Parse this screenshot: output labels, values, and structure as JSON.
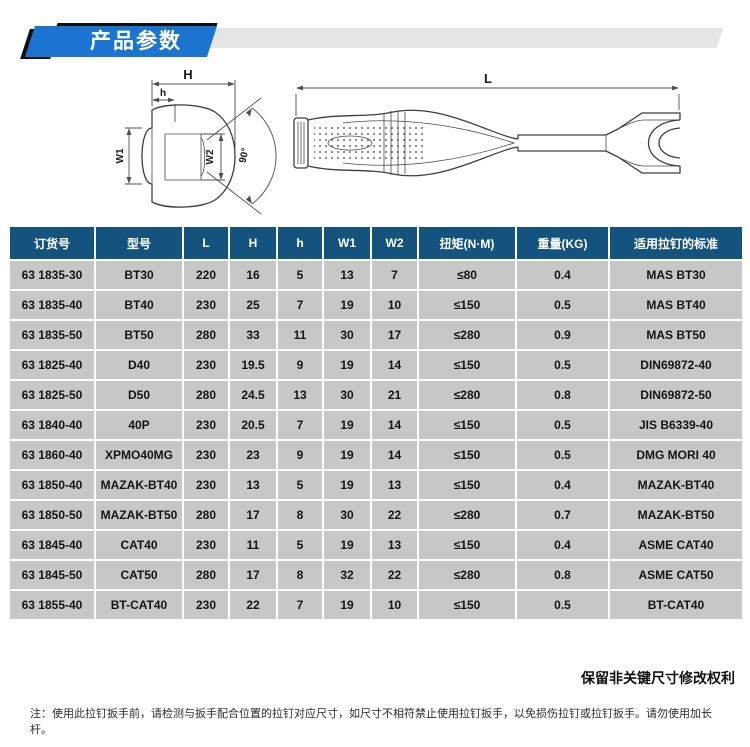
{
  "header": {
    "title": "产品参数"
  },
  "colors": {
    "banner_blue": "#1b74cf",
    "table_header_blue": "#15537f",
    "row_gray": "#c7c7c7",
    "bar_gray": "#e6e5e5"
  },
  "diagram": {
    "head_view": {
      "H": "H",
      "h": "h",
      "W1": "W1",
      "W2": "W2",
      "angle": "90°"
    },
    "side_view": {
      "L": "L"
    }
  },
  "table": {
    "columns": [
      "订货号",
      "型号",
      "L",
      "H",
      "h",
      "W1",
      "W2",
      "扭矩(N·M)",
      "重量(KG)",
      "适用拉钉的标准"
    ],
    "rows": [
      [
        "63 1835-30",
        "BT30",
        "220",
        "16",
        "5",
        "13",
        "7",
        "≤80",
        "0.4",
        "MAS BT30"
      ],
      [
        "63 1835-40",
        "BT40",
        "230",
        "25",
        "7",
        "19",
        "10",
        "≤150",
        "0.5",
        "MAS BT40"
      ],
      [
        "63 1835-50",
        "BT50",
        "280",
        "33",
        "11",
        "30",
        "17",
        "≤280",
        "0.9",
        "MAS BT50"
      ],
      [
        "63 1825-40",
        "D40",
        "230",
        "19.5",
        "9",
        "19",
        "14",
        "≤150",
        "0.5",
        "DIN69872-40"
      ],
      [
        "63 1825-50",
        "D50",
        "280",
        "24.5",
        "13",
        "30",
        "21",
        "≤280",
        "0.8",
        "DIN69872-50"
      ],
      [
        "63 1840-40",
        "40P",
        "230",
        "20.5",
        "7",
        "19",
        "14",
        "≤150",
        "0.5",
        "JIS B6339-40"
      ],
      [
        "63 1860-40",
        "XPMO40MG",
        "230",
        "23",
        "9",
        "19",
        "14",
        "≤150",
        "0.5",
        "DMG MORI 40"
      ],
      [
        "63 1850-40",
        "MAZAK-BT40",
        "230",
        "13",
        "5",
        "19",
        "13",
        "≤150",
        "0.4",
        "MAZAK-BT40"
      ],
      [
        "63 1850-50",
        "MAZAK-BT50",
        "280",
        "17",
        "8",
        "30",
        "22",
        "≤280",
        "0.7",
        "MAZAK-BT50"
      ],
      [
        "63 1845-40",
        "CAT40",
        "230",
        "11",
        "5",
        "19",
        "13",
        "≤150",
        "0.4",
        "ASME CAT40"
      ],
      [
        "63 1845-50",
        "CAT50",
        "280",
        "17",
        "8",
        "32",
        "22",
        "≤280",
        "0.8",
        "ASME CAT50"
      ],
      [
        "63 1855-40",
        "BT-CAT40",
        "230",
        "22",
        "7",
        "19",
        "10",
        "≤150",
        "0.5",
        "BT-CAT40"
      ]
    ]
  },
  "footer": {
    "rights": "保留非关键尺寸修改权利",
    "note": "注：使用此拉钉扳手前，请检测与扳手配合位置的拉钉对应尺寸，如尺寸不相符禁止使用拉钉扳手，以免损伤拉钉或拉钉扳手。请勿使用加长杆。"
  }
}
